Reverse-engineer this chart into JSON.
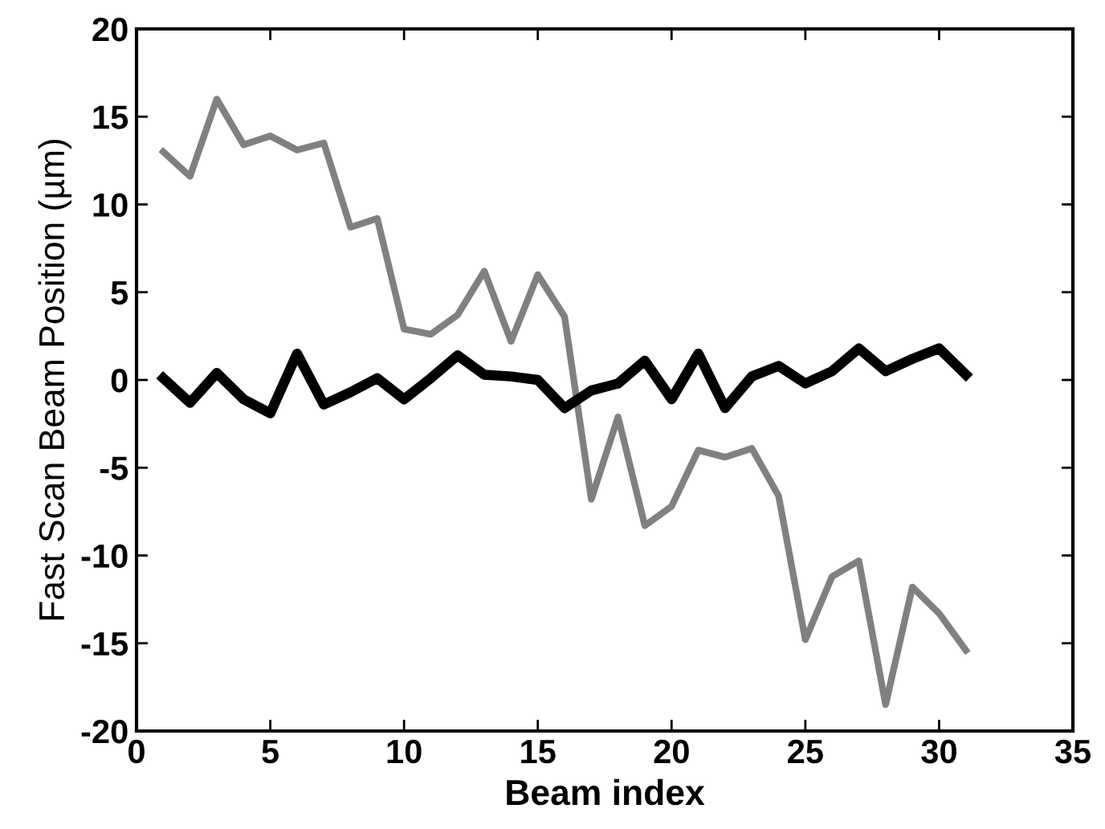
{
  "chart_data": {
    "type": "line",
    "xlabel": "Beam index",
    "ylabel": "Fast Scan Beam Position (µm)",
    "x": [
      1,
      2,
      3,
      4,
      5,
      6,
      7,
      8,
      9,
      10,
      11,
      12,
      13,
      14,
      15,
      16,
      17,
      18,
      19,
      20,
      21,
      22,
      23,
      24,
      25,
      26,
      27,
      28,
      29,
      30,
      31
    ],
    "series": [
      {
        "color": "#808080",
        "values": [
          13.0,
          11.6,
          16.0,
          13.4,
          13.9,
          13.1,
          13.5,
          8.7,
          9.2,
          2.9,
          2.6,
          3.7,
          6.2,
          2.2,
          6.0,
          3.6,
          -6.8,
          -2.1,
          -8.3,
          -7.2,
          -4.0,
          -4.4,
          -3.9,
          -6.6,
          -14.8,
          -11.2,
          -10.3,
          -18.5,
          -11.8,
          -13.3,
          -15.4
        ]
      },
      {
        "color": "#000000",
        "values": [
          0.1,
          -1.3,
          0.4,
          -1.1,
          -1.9,
          1.5,
          -1.4,
          -0.7,
          0.1,
          -1.1,
          0.1,
          1.4,
          0.3,
          0.2,
          0.0,
          -1.6,
          -0.6,
          -0.2,
          1.1,
          -1.1,
          1.5,
          -1.6,
          0.2,
          0.8,
          -0.2,
          0.5,
          1.8,
          0.5,
          1.2,
          1.8,
          0.3
        ]
      }
    ],
    "xlim": [
      0,
      35
    ],
    "xticks": [
      0,
      5,
      10,
      15,
      20,
      25,
      30,
      35
    ],
    "ylim": [
      -20,
      20
    ],
    "yticks": [
      -20,
      -15,
      -10,
      -5,
      0,
      5,
      10,
      15,
      20
    ],
    "grid": false,
    "legend": false,
    "marker": "none",
    "line_style": "solid"
  }
}
